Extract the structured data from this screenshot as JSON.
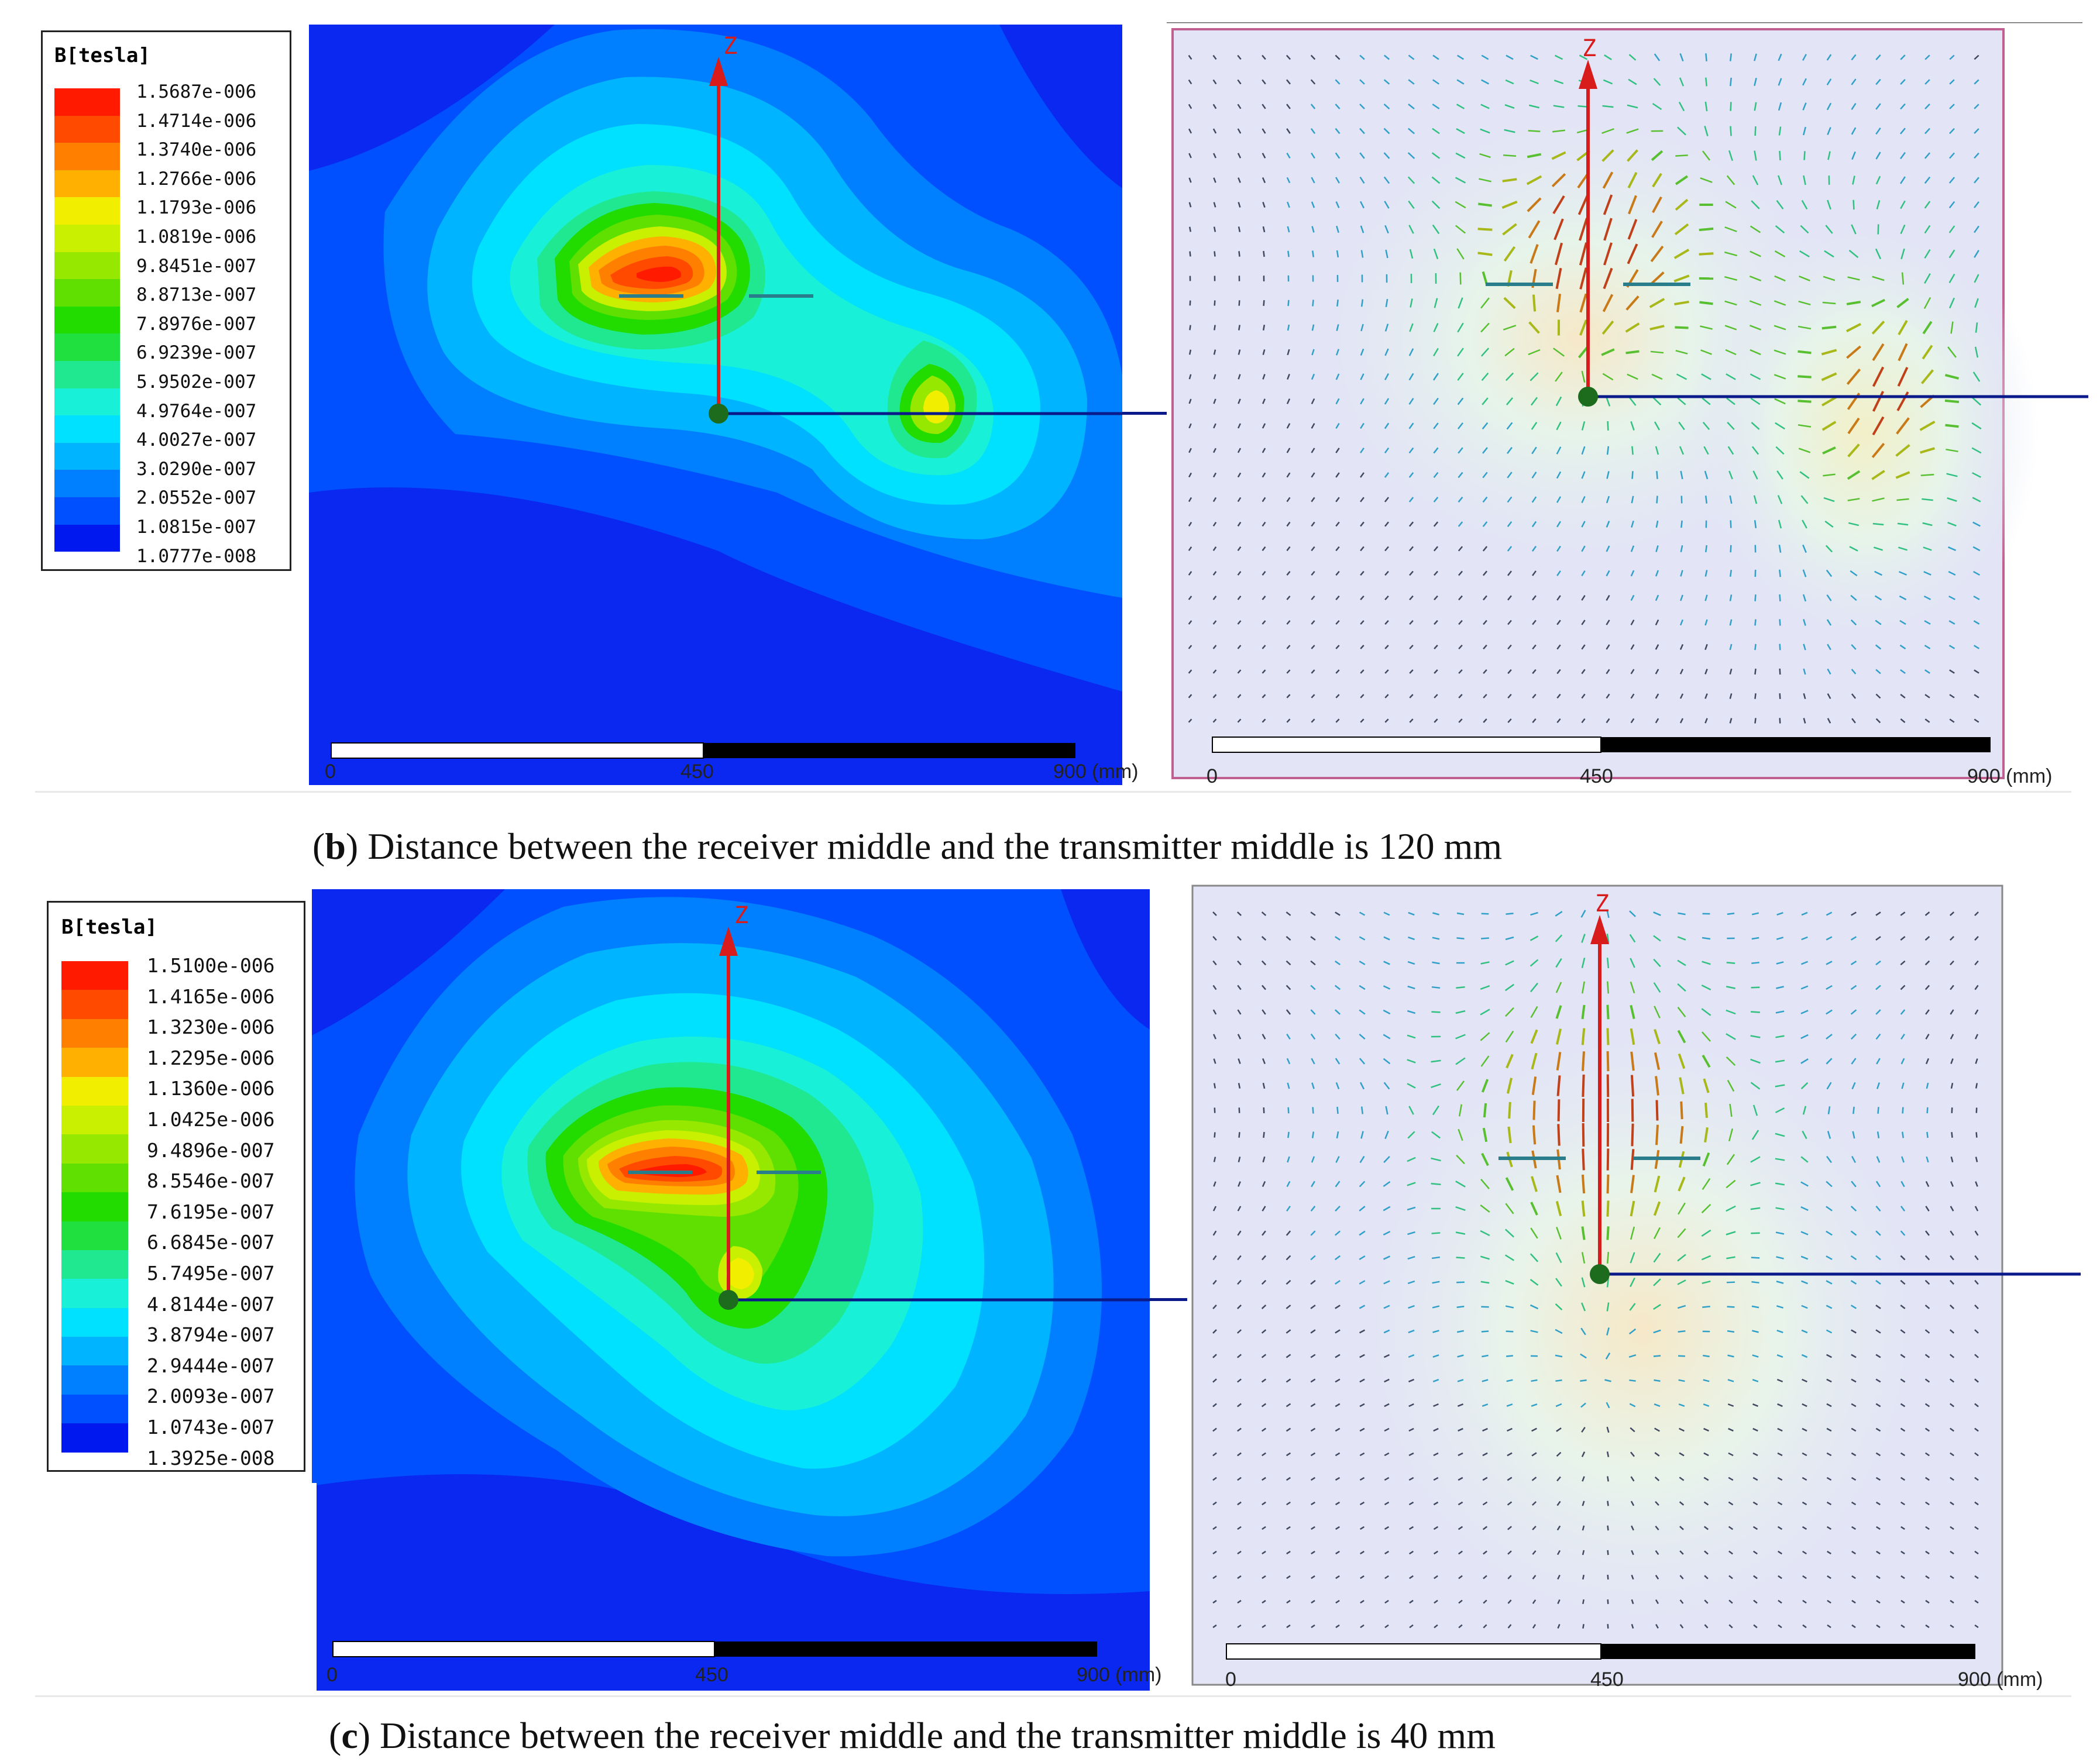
{
  "figure_b": {
    "legend": {
      "title": "B[tesla]",
      "colors": [
        "#ff1a00",
        "#ff4a00",
        "#ff8000",
        "#ffb000",
        "#f2ee00",
        "#c8f000",
        "#96e800",
        "#5fe000",
        "#22dc00",
        "#20e040",
        "#20e890",
        "#18f0d8",
        "#00e0ff",
        "#00b4ff",
        "#0080ff",
        "#0050ff",
        "#0018f0"
      ],
      "values": [
        "1.5687e-006",
        "1.4714e-006",
        "1.3740e-006",
        "1.2766e-006",
        "1.1793e-006",
        "1.0819e-006",
        "9.8451e-007",
        "8.8713e-007",
        "7.8976e-007",
        "6.9239e-007",
        "5.9502e-007",
        "4.9764e-007",
        "4.0027e-007",
        "3.0290e-007",
        "2.0552e-007",
        "1.0815e-007",
        "1.0777e-008"
      ]
    },
    "contour_panel": {
      "axis_label": "Z",
      "scale": [
        "0",
        "450",
        "900 (mm)"
      ]
    },
    "vector_panel": {
      "axis_label": "Z",
      "scale": [
        "0",
        "450",
        "900 (mm)"
      ]
    },
    "caption": {
      "letter": "b",
      "text": ") Distance between the receiver middle and the transmitter middle is 120 mm",
      "open": "("
    }
  },
  "figure_c": {
    "legend": {
      "title": "B[tesla]",
      "colors": [
        "#ff1a00",
        "#ff4a00",
        "#ff8000",
        "#ffb000",
        "#f2ee00",
        "#c8f000",
        "#96e800",
        "#5fe000",
        "#22dc00",
        "#20e040",
        "#20e890",
        "#18f0d8",
        "#00e0ff",
        "#00b4ff",
        "#0080ff",
        "#0050ff",
        "#0018f0"
      ],
      "values": [
        "1.5100e-006",
        "1.4165e-006",
        "1.3230e-006",
        "1.2295e-006",
        "1.1360e-006",
        "1.0425e-006",
        "9.4896e-007",
        "8.5546e-007",
        "7.6195e-007",
        "6.6845e-007",
        "5.7495e-007",
        "4.8144e-007",
        "3.8794e-007",
        "2.9444e-007",
        "2.0093e-007",
        "1.0743e-007",
        "1.3925e-008"
      ]
    },
    "contour_panel": {
      "axis_label": "Z",
      "scale": [
        "0",
        "450",
        "900 (mm)"
      ]
    },
    "vector_panel": {
      "axis_label": "Z",
      "scale": [
        "0",
        "450",
        "900 (mm)"
      ]
    },
    "caption": {
      "letter": "c",
      "text": ") Distance between the receiver middle and the transmitter middle is 40 mm",
      "open": "("
    }
  }
}
